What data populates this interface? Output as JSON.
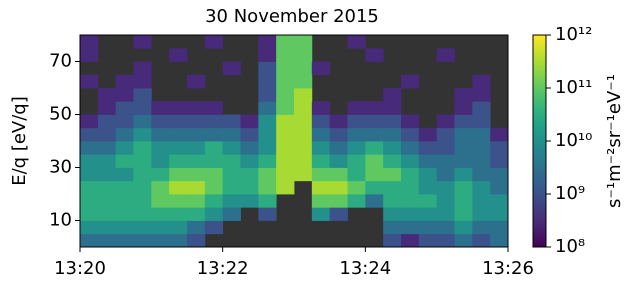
{
  "chart_data": {
    "type": "heatmap",
    "title": "30 November 2015",
    "ylabel": "E/q [eV/q]",
    "colorbar_label": "s⁻¹m⁻²sr⁻¹eV⁻¹",
    "xlim": [
      "13:20",
      "13:26"
    ],
    "xticks": [
      "13:20",
      "13:22",
      "13:24",
      "13:26"
    ],
    "ylim": [
      0,
      80
    ],
    "yticks": [
      10,
      30,
      50,
      70
    ],
    "y": [
      0,
      5,
      10,
      15,
      20,
      25,
      30,
      35,
      40,
      45,
      50,
      55,
      60,
      65,
      70,
      75,
      80
    ],
    "zscale": "log",
    "zlim": [
      100000000.0,
      1000000000000.0
    ],
    "zticks": [
      {
        "value": 100000000.0,
        "label": "10⁸"
      },
      {
        "value": 1000000000.0,
        "label": "10⁹"
      },
      {
        "value": 10000000000.0,
        "label": "10¹⁰"
      },
      {
        "value": 100000000000.0,
        "label": "10¹¹"
      },
      {
        "value": 1000000000000.0,
        "label": "10¹²"
      }
    ],
    "colormap": "viridis",
    "background": "#333333",
    "values": [
      [
        3000000000.0,
        3000000000.0,
        3000000000.0,
        3000000000.0,
        3000000000.0,
        3000000000.0,
        1000000000.0,
        null,
        null,
        null,
        null,
        null,
        null,
        null,
        null,
        null,
        null,
        1000000000.0,
        300000000.0,
        1000000000.0,
        1000000000.0,
        3000000000.0,
        1000000000.0,
        3000000000.0
      ],
      [
        10000000000.0,
        10000000000.0,
        10000000000.0,
        10000000000.0,
        10000000000.0,
        10000000000.0,
        3000000000.0,
        1000000000.0,
        null,
        null,
        null,
        null,
        null,
        null,
        null,
        null,
        null,
        3000000000.0,
        3000000000.0,
        3000000000.0,
        3000000000.0,
        10000000000.0,
        3000000000.0,
        3000000000.0
      ],
      [
        30000000000.0,
        30000000000.0,
        30000000000.0,
        30000000000.0,
        30000000000.0,
        30000000000.0,
        30000000000.0,
        10000000000.0,
        3000000000.0,
        null,
        1000000000.0,
        null,
        null,
        10000000000.0,
        1000000000.0,
        null,
        null,
        10000000000.0,
        10000000000.0,
        10000000000.0,
        10000000000.0,
        30000000000.0,
        10000000000.0,
        10000000000.0
      ],
      [
        30000000000.0,
        30000000000.0,
        30000000000.0,
        30000000000.0,
        100000000000.0,
        100000000000.0,
        100000000000.0,
        30000000000.0,
        10000000000.0,
        10000000000.0,
        30000000000.0,
        null,
        null,
        100000000000.0,
        100000000000.0,
        30000000000.0,
        3000000000.0,
        30000000000.0,
        30000000000.0,
        30000000000.0,
        10000000000.0,
        30000000000.0,
        10000000000.0,
        10000000000.0
      ],
      [
        30000000000.0,
        30000000000.0,
        30000000000.0,
        30000000000.0,
        100000000000.0,
        300000000000.0,
        300000000000.0,
        100000000000.0,
        30000000000.0,
        30000000000.0,
        100000000000.0,
        300000000000.0,
        null,
        300000000000.0,
        300000000000.0,
        100000000000.0,
        30000000000.0,
        30000000000.0,
        30000000000.0,
        10000000000.0,
        10000000000.0,
        30000000000.0,
        10000000000.0,
        3000000000.0
      ],
      [
        10000000000.0,
        10000000000.0,
        10000000000.0,
        30000000000.0,
        30000000000.0,
        100000000000.0,
        100000000000.0,
        100000000000.0,
        30000000000.0,
        30000000000.0,
        100000000000.0,
        300000000000.0,
        300000000000.0,
        100000000000.0,
        100000000000.0,
        30000000000.0,
        100000000000.0,
        100000000000.0,
        30000000000.0,
        10000000000.0,
        3000000000.0,
        10000000000.0,
        3000000000.0,
        3000000000.0
      ],
      [
        10000000000.0,
        10000000000.0,
        30000000000.0,
        30000000000.0,
        10000000000.0,
        30000000000.0,
        30000000000.0,
        30000000000.0,
        30000000000.0,
        10000000000.0,
        30000000000.0,
        300000000000.0,
        300000000000.0,
        30000000000.0,
        10000000000.0,
        30000000000.0,
        100000000000.0,
        30000000000.0,
        10000000000.0,
        3000000000.0,
        3000000000.0,
        3000000000.0,
        3000000000.0,
        1000000000.0
      ],
      [
        3000000000.0,
        3000000000.0,
        10000000000.0,
        30000000000.0,
        10000000000.0,
        10000000000.0,
        10000000000.0,
        30000000000.0,
        10000000000.0,
        3000000000.0,
        10000000000.0,
        300000000000.0,
        300000000000.0,
        10000000000.0,
        3000000000.0,
        10000000000.0,
        30000000000.0,
        10000000000.0,
        3000000000.0,
        1000000000.0,
        1000000000.0,
        3000000000.0,
        3000000000.0,
        1000000000.0
      ],
      [
        1000000000.0,
        1000000000.0,
        3000000000.0,
        10000000000.0,
        3000000000.0,
        3000000000.0,
        3000000000.0,
        3000000000.0,
        3000000000.0,
        1000000000.0,
        10000000000.0,
        300000000000.0,
        300000000000.0,
        3000000000.0,
        1000000000.0,
        3000000000.0,
        3000000000.0,
        3000000000.0,
        1000000000.0,
        300000000.0,
        1000000000.0,
        3000000000.0,
        3000000000.0,
        300000000.0
      ],
      [
        300000000.0,
        1000000000.0,
        1000000000.0,
        3000000000.0,
        1000000000.0,
        1000000000.0,
        1000000000.0,
        1000000000.0,
        1000000000.0,
        300000000.0,
        10000000000.0,
        300000000000.0,
        300000000000.0,
        1000000000.0,
        300000000.0,
        1000000000.0,
        1000000000.0,
        1000000000.0,
        300000000.0,
        null,
        300000000.0,
        1000000000.0,
        1000000000.0,
        null
      ],
      [
        null,
        300000000.0,
        1000000000.0,
        1000000000.0,
        300000000.0,
        300000000.0,
        300000000.0,
        300000000.0,
        null,
        null,
        3000000000.0,
        100000000000.0,
        300000000000.0,
        300000000.0,
        null,
        300000000.0,
        300000000.0,
        300000000.0,
        null,
        null,
        null,
        300000000.0,
        1000000000.0,
        null
      ],
      [
        null,
        300000000.0,
        300000000.0,
        1000000000.0,
        null,
        null,
        null,
        null,
        null,
        null,
        1000000000.0,
        100000000000.0,
        300000000000.0,
        null,
        null,
        null,
        null,
        300000000.0,
        null,
        null,
        null,
        300000000.0,
        300000000.0,
        null
      ],
      [
        300000000.0,
        null,
        300000000.0,
        300000000.0,
        null,
        null,
        300000000.0,
        null,
        null,
        null,
        1000000000.0,
        100000000000.0,
        100000000000.0,
        null,
        null,
        null,
        null,
        null,
        300000000.0,
        null,
        null,
        null,
        300000000.0,
        null
      ],
      [
        null,
        null,
        null,
        300000000.0,
        null,
        null,
        null,
        null,
        300000000.0,
        null,
        1000000000.0,
        100000000000.0,
        100000000000.0,
        300000000.0,
        null,
        null,
        null,
        null,
        null,
        null,
        null,
        null,
        null,
        null
      ],
      [
        300000000.0,
        null,
        null,
        null,
        null,
        300000000.0,
        null,
        null,
        null,
        null,
        300000000.0,
        100000000000.0,
        100000000000.0,
        null,
        null,
        null,
        300000000.0,
        null,
        null,
        null,
        300000000.0,
        null,
        null,
        null
      ],
      [
        300000000.0,
        null,
        null,
        300000000.0,
        null,
        null,
        null,
        300000000.0,
        null,
        null,
        300000000.0,
        100000000000.0,
        100000000000.0,
        null,
        null,
        300000000.0,
        null,
        null,
        null,
        null,
        null,
        null,
        null,
        null
      ]
    ]
  }
}
